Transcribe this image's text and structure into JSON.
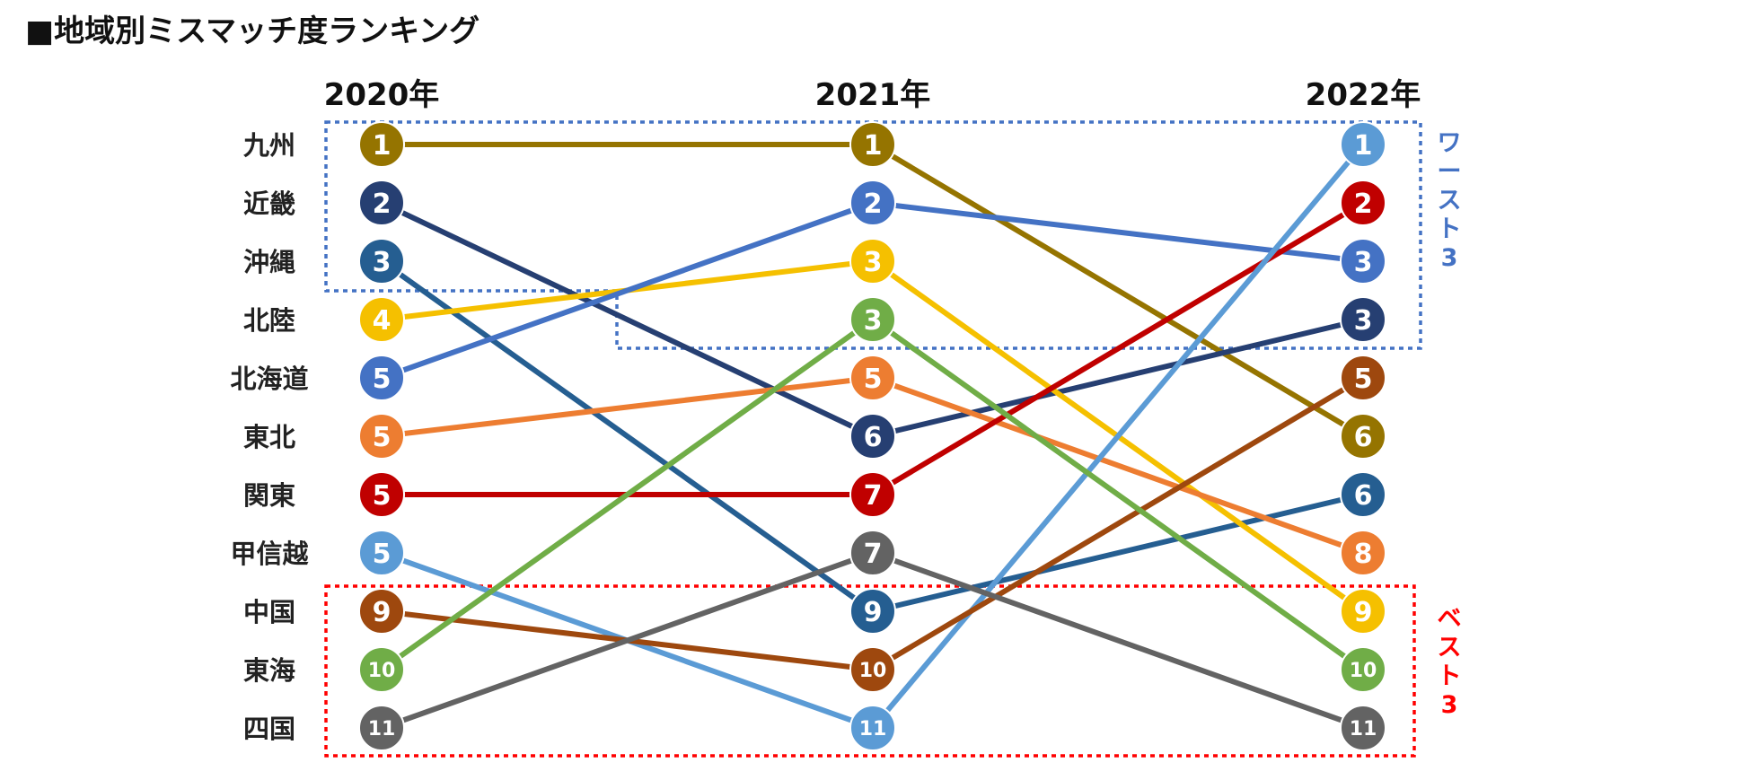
{
  "chart_data": {
    "type": "bump",
    "title": "■地域別ミスマッチ度ランキング",
    "years": [
      "2020年",
      "2021年",
      "2022年"
    ],
    "series": [
      {
        "name": "九州",
        "color": "#957400",
        "ranks": [
          1,
          1,
          6
        ]
      },
      {
        "name": "近畿",
        "color": "#263F72",
        "ranks": [
          2,
          6,
          3
        ]
      },
      {
        "name": "沖縄",
        "color": "#255E91",
        "ranks": [
          3,
          9,
          6
        ]
      },
      {
        "name": "北陸",
        "color": "#F5C000",
        "ranks": [
          4,
          3,
          9
        ]
      },
      {
        "name": "北海道",
        "color": "#4472C4",
        "ranks": [
          5,
          2,
          3
        ]
      },
      {
        "name": "東北",
        "color": "#ED7D31",
        "ranks": [
          5,
          5,
          8
        ]
      },
      {
        "name": "関東",
        "color": "#C00000",
        "ranks": [
          5,
          7,
          2
        ]
      },
      {
        "name": "甲信越",
        "color": "#5B9BD5",
        "ranks": [
          5,
          11,
          1
        ]
      },
      {
        "name": "中国",
        "color": "#9E480E",
        "ranks": [
          9,
          10,
          5
        ]
      },
      {
        "name": "東海",
        "color": "#70AD47",
        "ranks": [
          10,
          3,
          10
        ]
      },
      {
        "name": "四国",
        "color": "#636363",
        "ranks": [
          11,
          7,
          11
        ]
      }
    ],
    "annotations": [
      {
        "text": "ワースト3",
        "color": "#4472C4"
      },
      {
        "text": "ベスト3",
        "color": "#FF0000"
      }
    ]
  }
}
